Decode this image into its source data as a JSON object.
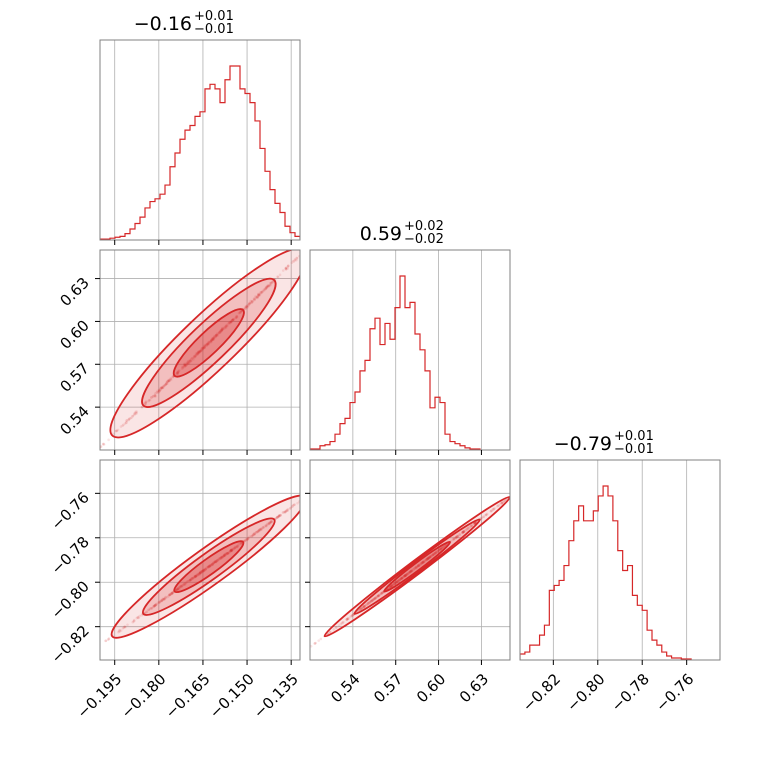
{
  "chart_data": {
    "type": "corner",
    "color": "#d62728",
    "grid": true,
    "params": [
      {
        "range": [
          -0.2,
          -0.132
        ],
        "ticks": [
          -0.195,
          -0.18,
          -0.165,
          -0.15,
          -0.135
        ],
        "tick_labels": [
          "−0.195",
          "−0.180",
          "−0.165",
          "−0.150",
          "−0.135"
        ]
      },
      {
        "range": [
          0.51,
          0.65
        ],
        "ticks": [
          0.54,
          0.57,
          0.6,
          0.63
        ],
        "tick_labels": [
          "0.54",
          "0.57",
          "0.60",
          "0.63"
        ]
      },
      {
        "range": [
          -0.835,
          -0.745
        ],
        "ticks": [
          -0.82,
          -0.8,
          -0.78,
          -0.76
        ],
        "tick_labels": [
          "−0.82",
          "−0.80",
          "−0.78",
          "−0.76"
        ]
      }
    ],
    "titles": [
      {
        "main": "−0.16",
        "sup": "+0.01",
        "sub": "−0.01"
      },
      {
        "main": "0.59",
        "sup": "+0.02",
        "sub": "−0.02"
      },
      {
        "main": "−0.79",
        "sup": "+0.01",
        "sub": "−0.01"
      }
    ],
    "histograms": [
      {
        "param": 0,
        "edges_start": -0.2,
        "bin_width": 0.0017,
        "counts": [
          1,
          1,
          2,
          3,
          4,
          7,
          12,
          18,
          25,
          35,
          42,
          45,
          50,
          60,
          80,
          95,
          110,
          120,
          125,
          135,
          140,
          165,
          170,
          165,
          150,
          175,
          190,
          190,
          165,
          160,
          150,
          130,
          100,
          75,
          55,
          40,
          30,
          15,
          8,
          4,
          2,
          1,
          1
        ]
      },
      {
        "param": 1,
        "edges_start": 0.51,
        "bin_width": 0.0035,
        "counts": [
          1,
          1,
          4,
          5,
          8,
          15,
          25,
          30,
          45,
          55,
          75,
          85,
          115,
          125,
          100,
          120,
          105,
          135,
          165,
          135,
          140,
          110,
          95,
          75,
          40,
          50,
          45,
          15,
          8,
          6,
          4,
          2,
          1,
          1
        ]
      },
      {
        "param": 2,
        "edges_start": -0.835,
        "bin_width": 0.0022,
        "counts": [
          6,
          8,
          15,
          15,
          25,
          35,
          70,
          75,
          80,
          95,
          120,
          140,
          155,
          140,
          140,
          150,
          165,
          175,
          165,
          140,
          110,
          90,
          95,
          65,
          55,
          50,
          30,
          20,
          15,
          8,
          4,
          2,
          2,
          1,
          1
        ]
      }
    ],
    "scatters": [
      {
        "x_param": 0,
        "y_param": 1,
        "mean": [
          -0.163,
          0.585
        ],
        "dir": [
          0.0212,
          0.0418
        ],
        "spread": 0.0025
      },
      {
        "x_param": 0,
        "y_param": 2,
        "mean": [
          -0.163,
          -0.793
        ],
        "dir": [
          0.0212,
          0.0202
        ],
        "spread": 0.0016
      },
      {
        "x_param": 1,
        "y_param": 2,
        "mean": [
          0.585,
          -0.793
        ],
        "dir": [
          0.0418,
          0.0202
        ],
        "spread": 0.0003
      }
    ]
  }
}
